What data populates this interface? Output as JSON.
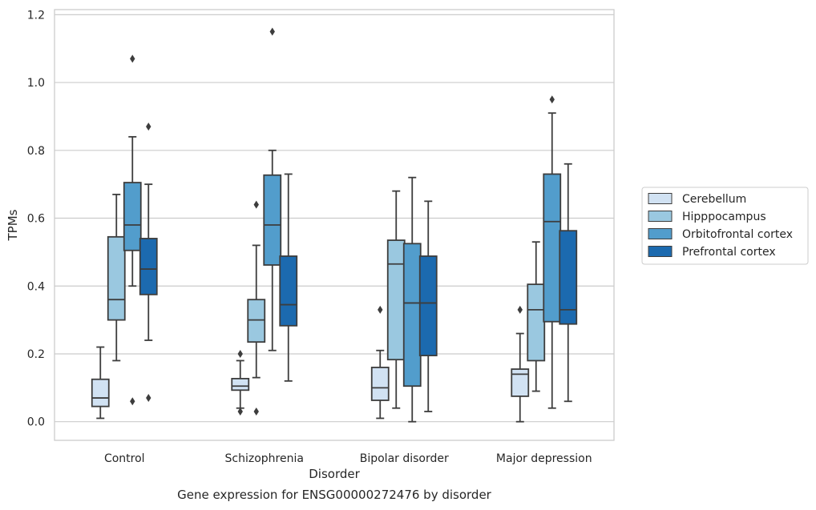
{
  "chart_data": {
    "type": "box",
    "caption": "Gene expression for ENSG00000272476 by disorder",
    "xlabel": "Disorder",
    "ylabel": "TPMs",
    "ylim": [
      -0.055,
      1.215
    ],
    "yticks": [
      "0.0",
      "0.2",
      "0.4",
      "0.6",
      "0.8",
      "1.0",
      "1.2"
    ],
    "categories": [
      "Control",
      "Schizophrenia",
      "Bipolar disorder",
      "Major depression"
    ],
    "grid": "horizontal",
    "legend_position": "right",
    "series": [
      {
        "name": "Cerebellum",
        "color": "#d1e2f3",
        "boxes": [
          {
            "whisker_low": 0.01,
            "q1": 0.045,
            "median": 0.07,
            "q3": 0.125,
            "whisker_high": 0.22,
            "outliers": []
          },
          {
            "whisker_low": 0.04,
            "q1": 0.093,
            "median": 0.105,
            "q3": 0.127,
            "whisker_high": 0.18,
            "outliers": [
              0.2,
              0.03
            ]
          },
          {
            "whisker_low": 0.01,
            "q1": 0.063,
            "median": 0.1,
            "q3": 0.16,
            "whisker_high": 0.21,
            "outliers": [
              0.33
            ]
          },
          {
            "whisker_low": 0.0,
            "q1": 0.075,
            "median": 0.14,
            "q3": 0.155,
            "whisker_high": 0.26,
            "outliers": [
              0.33
            ]
          }
        ]
      },
      {
        "name": "Hipppocampus",
        "color": "#9ac8e0",
        "boxes": [
          {
            "whisker_low": 0.18,
            "q1": 0.3,
            "median": 0.36,
            "q3": 0.545,
            "whisker_high": 0.67,
            "outliers": []
          },
          {
            "whisker_low": 0.13,
            "q1": 0.235,
            "median": 0.3,
            "q3": 0.36,
            "whisker_high": 0.52,
            "outliers": [
              0.64,
              0.03
            ]
          },
          {
            "whisker_low": 0.04,
            "q1": 0.183,
            "median": 0.465,
            "q3": 0.535,
            "whisker_high": 0.68,
            "outliers": []
          },
          {
            "whisker_low": 0.09,
            "q1": 0.18,
            "median": 0.33,
            "q3": 0.405,
            "whisker_high": 0.53,
            "outliers": []
          }
        ]
      },
      {
        "name": "Orbitofrontal cortex",
        "color": "#529dcc",
        "boxes": [
          {
            "whisker_low": 0.4,
            "q1": 0.505,
            "median": 0.58,
            "q3": 0.705,
            "whisker_high": 0.84,
            "outliers": [
              1.07,
              0.06
            ]
          },
          {
            "whisker_low": 0.21,
            "q1": 0.462,
            "median": 0.58,
            "q3": 0.727,
            "whisker_high": 0.8,
            "outliers": [
              1.15
            ]
          },
          {
            "whisker_low": 0.0,
            "q1": 0.105,
            "median": 0.35,
            "q3": 0.525,
            "whisker_high": 0.72,
            "outliers": []
          },
          {
            "whisker_low": 0.04,
            "q1": 0.295,
            "median": 0.59,
            "q3": 0.73,
            "whisker_high": 0.91,
            "outliers": [
              0.95
            ]
          }
        ]
      },
      {
        "name": "Prefrontal cortex",
        "color": "#1c6aaf",
        "boxes": [
          {
            "whisker_low": 0.24,
            "q1": 0.375,
            "median": 0.45,
            "q3": 0.54,
            "whisker_high": 0.7,
            "outliers": [
              0.87,
              0.07
            ]
          },
          {
            "whisker_low": 0.12,
            "q1": 0.283,
            "median": 0.345,
            "q3": 0.488,
            "whisker_high": 0.73,
            "outliers": []
          },
          {
            "whisker_low": 0.03,
            "q1": 0.195,
            "median": 0.35,
            "q3": 0.488,
            "whisker_high": 0.65,
            "outliers": []
          },
          {
            "whisker_low": 0.06,
            "q1": 0.288,
            "median": 0.33,
            "q3": 0.563,
            "whisker_high": 0.76,
            "outliers": []
          }
        ]
      }
    ]
  }
}
